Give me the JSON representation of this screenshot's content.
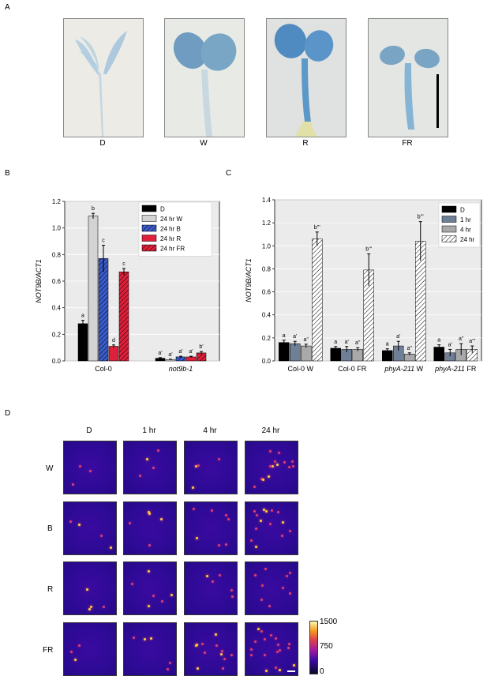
{
  "panels": {
    "A": "A",
    "B": "B",
    "C": "C",
    "D": "D"
  },
  "panelA": {
    "labels": [
      "D",
      "W",
      "R",
      "FR"
    ]
  },
  "chart_data": [
    {
      "panel": "B",
      "type": "bar",
      "ylabel": "NOT9B/ACT1",
      "ylim": [
        0,
        1.2
      ],
      "yticks": [
        "0.0",
        "0.2",
        "0.4",
        "0.6",
        "0.8",
        "1.0",
        "1.2"
      ],
      "groups": [
        "Col-0",
        "not9b-1"
      ],
      "series": [
        {
          "name": "D",
          "color": "#000000",
          "hatch": false,
          "values": [
            0.28,
            0.02
          ],
          "err": [
            0.025,
            0.005
          ],
          "letters": [
            "a",
            "a'"
          ]
        },
        {
          "name": "24 hr W",
          "color": "#d3d3d3",
          "hatch": false,
          "values": [
            1.09,
            0.01
          ],
          "err": [
            0.02,
            0.003
          ],
          "letters": [
            "b",
            "a'"
          ]
        },
        {
          "name": "24 hr B",
          "color": "#3b5ccc",
          "hatch": true,
          "values": [
            0.77,
            0.03
          ],
          "err": [
            0.1,
            0.005
          ],
          "letters": [
            "c",
            "a'"
          ]
        },
        {
          "name": "24 hr R",
          "color": "#e0203a",
          "hatch": false,
          "values": [
            0.11,
            0.03
          ],
          "err": [
            0.01,
            0.005
          ],
          "letters": [
            "d",
            "a'"
          ]
        },
        {
          "name": "24 hr FR",
          "color": "#e0203a",
          "hatch": true,
          "values": [
            0.67,
            0.06
          ],
          "err": [
            0.025,
            0.01
          ],
          "letters": [
            "c",
            "b'"
          ]
        }
      ]
    },
    {
      "panel": "C",
      "type": "bar",
      "ylabel": "NOT9B/ACT1",
      "ylim": [
        0,
        1.4
      ],
      "yticks": [
        "0.0",
        "0.2",
        "0.4",
        "0.6",
        "0.8",
        "1.0",
        "1.2",
        "1.4"
      ],
      "groups": [
        "Col-0 W",
        "Col-0 FR",
        "phyA-211 W",
        "phyA-211 FR"
      ],
      "series": [
        {
          "name": "D",
          "color": "#000000",
          "hatch": false,
          "values": [
            0.16,
            0.11,
            0.09,
            0.12
          ],
          "err": [
            0.02,
            0.015,
            0.015,
            0.02
          ],
          "letters": [
            "a",
            "a",
            "a",
            "a"
          ]
        },
        {
          "name": "1 hr",
          "color": "#6f7f96",
          "hatch": false,
          "values": [
            0.15,
            0.1,
            0.13,
            0.07
          ],
          "err": [
            0.02,
            0.025,
            0.04,
            0.03
          ],
          "letters": [
            "a'",
            "a'",
            "a'",
            "a'"
          ]
        },
        {
          "name": "4 hr",
          "color": "#a9a9a9",
          "hatch": false,
          "values": [
            0.13,
            0.1,
            0.06,
            0.1
          ],
          "err": [
            0.015,
            0.015,
            0.01,
            0.05
          ],
          "letters": [
            "a''",
            "a''",
            "a''",
            "a''"
          ]
        },
        {
          "name": "24 hr",
          "color": "#ffffff",
          "hatch": true,
          "values": [
            1.06,
            0.79,
            1.04,
            0.1
          ],
          "err": [
            0.06,
            0.14,
            0.17,
            0.03
          ],
          "letters": [
            "b'''",
            "b'''",
            "b'''",
            "a'''"
          ]
        }
      ]
    }
  ],
  "panelD": {
    "columns": [
      "D",
      "1 hr",
      "4 hr",
      "24 hr"
    ],
    "rows": [
      "W",
      "B",
      "R",
      "FR"
    ],
    "colorbar": {
      "max": "1500",
      "mid": "750",
      "min": "0"
    }
  }
}
